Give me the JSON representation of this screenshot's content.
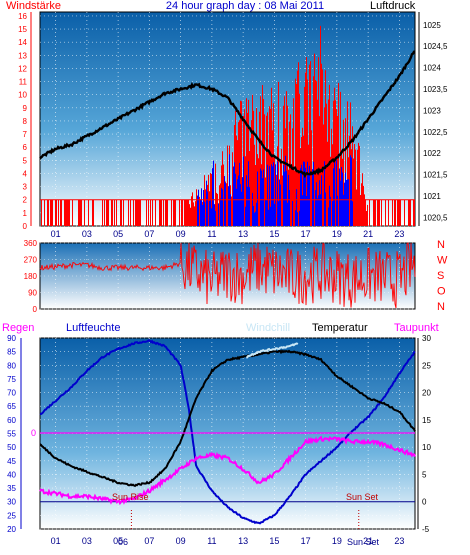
{
  "colors": {
    "wind": "#ff0000",
    "gust_blue": "#0000ff",
    "pressure": "#000000",
    "title": "#0000cc",
    "humidity": "#0000cc",
    "dewpoint": "#ff00ff",
    "windchill": "#c8e6f5",
    "rain": "#ff00ff",
    "frame": "#000000",
    "bg_top": "#0a5fa8",
    "bg_bottom": "#ffffff"
  },
  "chart_data": [
    {
      "type": "line",
      "title": "24 hour graph day : 08 Mai 2011",
      "left_label": "Windstärke",
      "right_label": "Luftdruck",
      "x_ticks": [
        "01",
        "03",
        "05",
        "07",
        "09",
        "11",
        "13",
        "15",
        "17",
        "19",
        "21",
        "23"
      ],
      "y_left_ticks": [
        0,
        1,
        2,
        3,
        4,
        5,
        6,
        7,
        8,
        9,
        10,
        11,
        12,
        13,
        14,
        15,
        16
      ],
      "y_right_ticks": [
        "1020,5",
        "1021",
        "1021,5",
        "1022",
        "1022,5",
        "1023",
        "1023,5",
        "1024",
        "1024,5",
        "1025"
      ],
      "ylim_left": [
        0,
        16.3
      ],
      "ylim_right": [
        1020.3,
        1025.3
      ],
      "pressure": {
        "x": [
          0,
          1,
          2,
          3,
          4,
          5,
          6,
          7,
          8,
          9,
          10,
          10.5,
          11,
          12,
          13,
          14,
          15,
          16,
          17,
          18,
          19,
          20,
          21,
          22,
          23,
          24
        ],
        "y": [
          1021.9,
          1022.1,
          1022.2,
          1022.4,
          1022.6,
          1022.8,
          1023.0,
          1023.2,
          1023.4,
          1023.5,
          1023.6,
          1023.55,
          1023.5,
          1023.3,
          1022.8,
          1022.3,
          1021.9,
          1021.7,
          1021.5,
          1021.6,
          1021.9,
          1022.3,
          1022.8,
          1023.3,
          1023.8,
          1024.4
        ]
      },
      "wind_envelope": {
        "x": [
          0,
          2,
          4,
          6,
          8,
          9,
          10,
          11,
          12,
          13,
          14,
          15,
          16,
          17,
          18,
          19,
          20,
          21,
          22,
          23,
          24
        ],
        "y": [
          2,
          2,
          2,
          2,
          2,
          2,
          3,
          5,
          8,
          10,
          11,
          11,
          12,
          13,
          16,
          11,
          10,
          2,
          2,
          2,
          2
        ]
      }
    },
    {
      "type": "line",
      "title": "",
      "x_ticks": [
        "01",
        "03",
        "05",
        "07",
        "09",
        "11",
        "13",
        "15",
        "17",
        "19",
        "21",
        "23"
      ],
      "y_ticks": [
        0,
        90,
        180,
        270,
        360
      ],
      "right_labels": [
        "N",
        "W",
        "S",
        "O",
        "N"
      ],
      "ylim": [
        0,
        360
      ],
      "direction": {
        "x": [
          0,
          1,
          2,
          3,
          4,
          5,
          6,
          7,
          8,
          9,
          10,
          11,
          12,
          13,
          14,
          15,
          16,
          17,
          18,
          19,
          20,
          21,
          22,
          23,
          24
        ],
        "y": [
          225,
          230,
          240,
          240,
          225,
          225,
          225,
          225,
          225,
          250,
          200,
          150,
          200,
          180,
          230,
          200,
          180,
          180,
          200,
          180,
          160,
          180,
          170,
          160,
          250
        ]
      }
    },
    {
      "type": "line",
      "title": "",
      "x_ticks": [
        "01",
        "03",
        "05",
        "07",
        "09",
        "11",
        "13",
        "15",
        "17",
        "19",
        "21",
        "23"
      ],
      "y_left_ticks": [
        20,
        25,
        30,
        35,
        40,
        45,
        50,
        55,
        60,
        65,
        70,
        75,
        80,
        85,
        90
      ],
      "y_right_ticks": [
        -5,
        0,
        5,
        10,
        15,
        20,
        25,
        30
      ],
      "ylim_left": [
        20,
        90
      ],
      "ylim_right": [
        -5,
        30
      ],
      "left_label": "Regen",
      "rain_zero_label": "0",
      "annotations": [
        "Sun Rise",
        "Sun Set"
      ],
      "sun_marker_labels": [
        "06",
        "Sun Set"
      ],
      "series": [
        {
          "name": "Luftfeuchte",
          "axis": "left",
          "x": [
            0,
            1,
            2,
            3,
            4,
            5,
            6,
            7,
            8,
            9,
            9.5,
            10,
            11,
            12,
            13,
            14,
            15,
            16,
            17,
            18,
            19,
            20,
            21,
            22,
            23,
            24
          ],
          "y": [
            62,
            67,
            72,
            78,
            83,
            86,
            88,
            89,
            87,
            80,
            65,
            43,
            34,
            28,
            24,
            22,
            25,
            32,
            40,
            45,
            50,
            56,
            61,
            68,
            77,
            85
          ]
        },
        {
          "name": "Temperatur",
          "axis": "right",
          "x": [
            0,
            1,
            2,
            3,
            4,
            5,
            6,
            7,
            8,
            9,
            10,
            11,
            12,
            13,
            14,
            15,
            16,
            17,
            18,
            19,
            20,
            21,
            22,
            23,
            24
          ],
          "y": [
            10.5,
            8,
            6.5,
            5.5,
            4.5,
            3.5,
            3,
            3.5,
            6,
            11,
            19,
            24,
            26,
            26.5,
            27,
            27.5,
            27.5,
            27,
            26,
            23,
            21,
            19,
            18,
            16.5,
            13
          ]
        },
        {
          "name": "Taupunkt",
          "axis": "right",
          "x": [
            0,
            1,
            2,
            3,
            4,
            5,
            6,
            7,
            8,
            9,
            10,
            11,
            12,
            13,
            14,
            15,
            16,
            17,
            18,
            19,
            20,
            21,
            22,
            23,
            24
          ],
          "y": [
            2,
            1.5,
            1,
            1,
            0.5,
            0,
            0.5,
            2,
            4,
            6,
            8,
            8.5,
            8,
            6,
            3.5,
            5,
            8,
            11,
            11.5,
            11.5,
            11,
            11,
            10.5,
            9.5,
            8.5
          ]
        },
        {
          "name": "Windchill",
          "axis": "right",
          "x": [
            13.2,
            14,
            15,
            16,
            16.5
          ],
          "y": [
            26.5,
            27.5,
            28,
            28.5,
            29
          ]
        }
      ]
    }
  ]
}
